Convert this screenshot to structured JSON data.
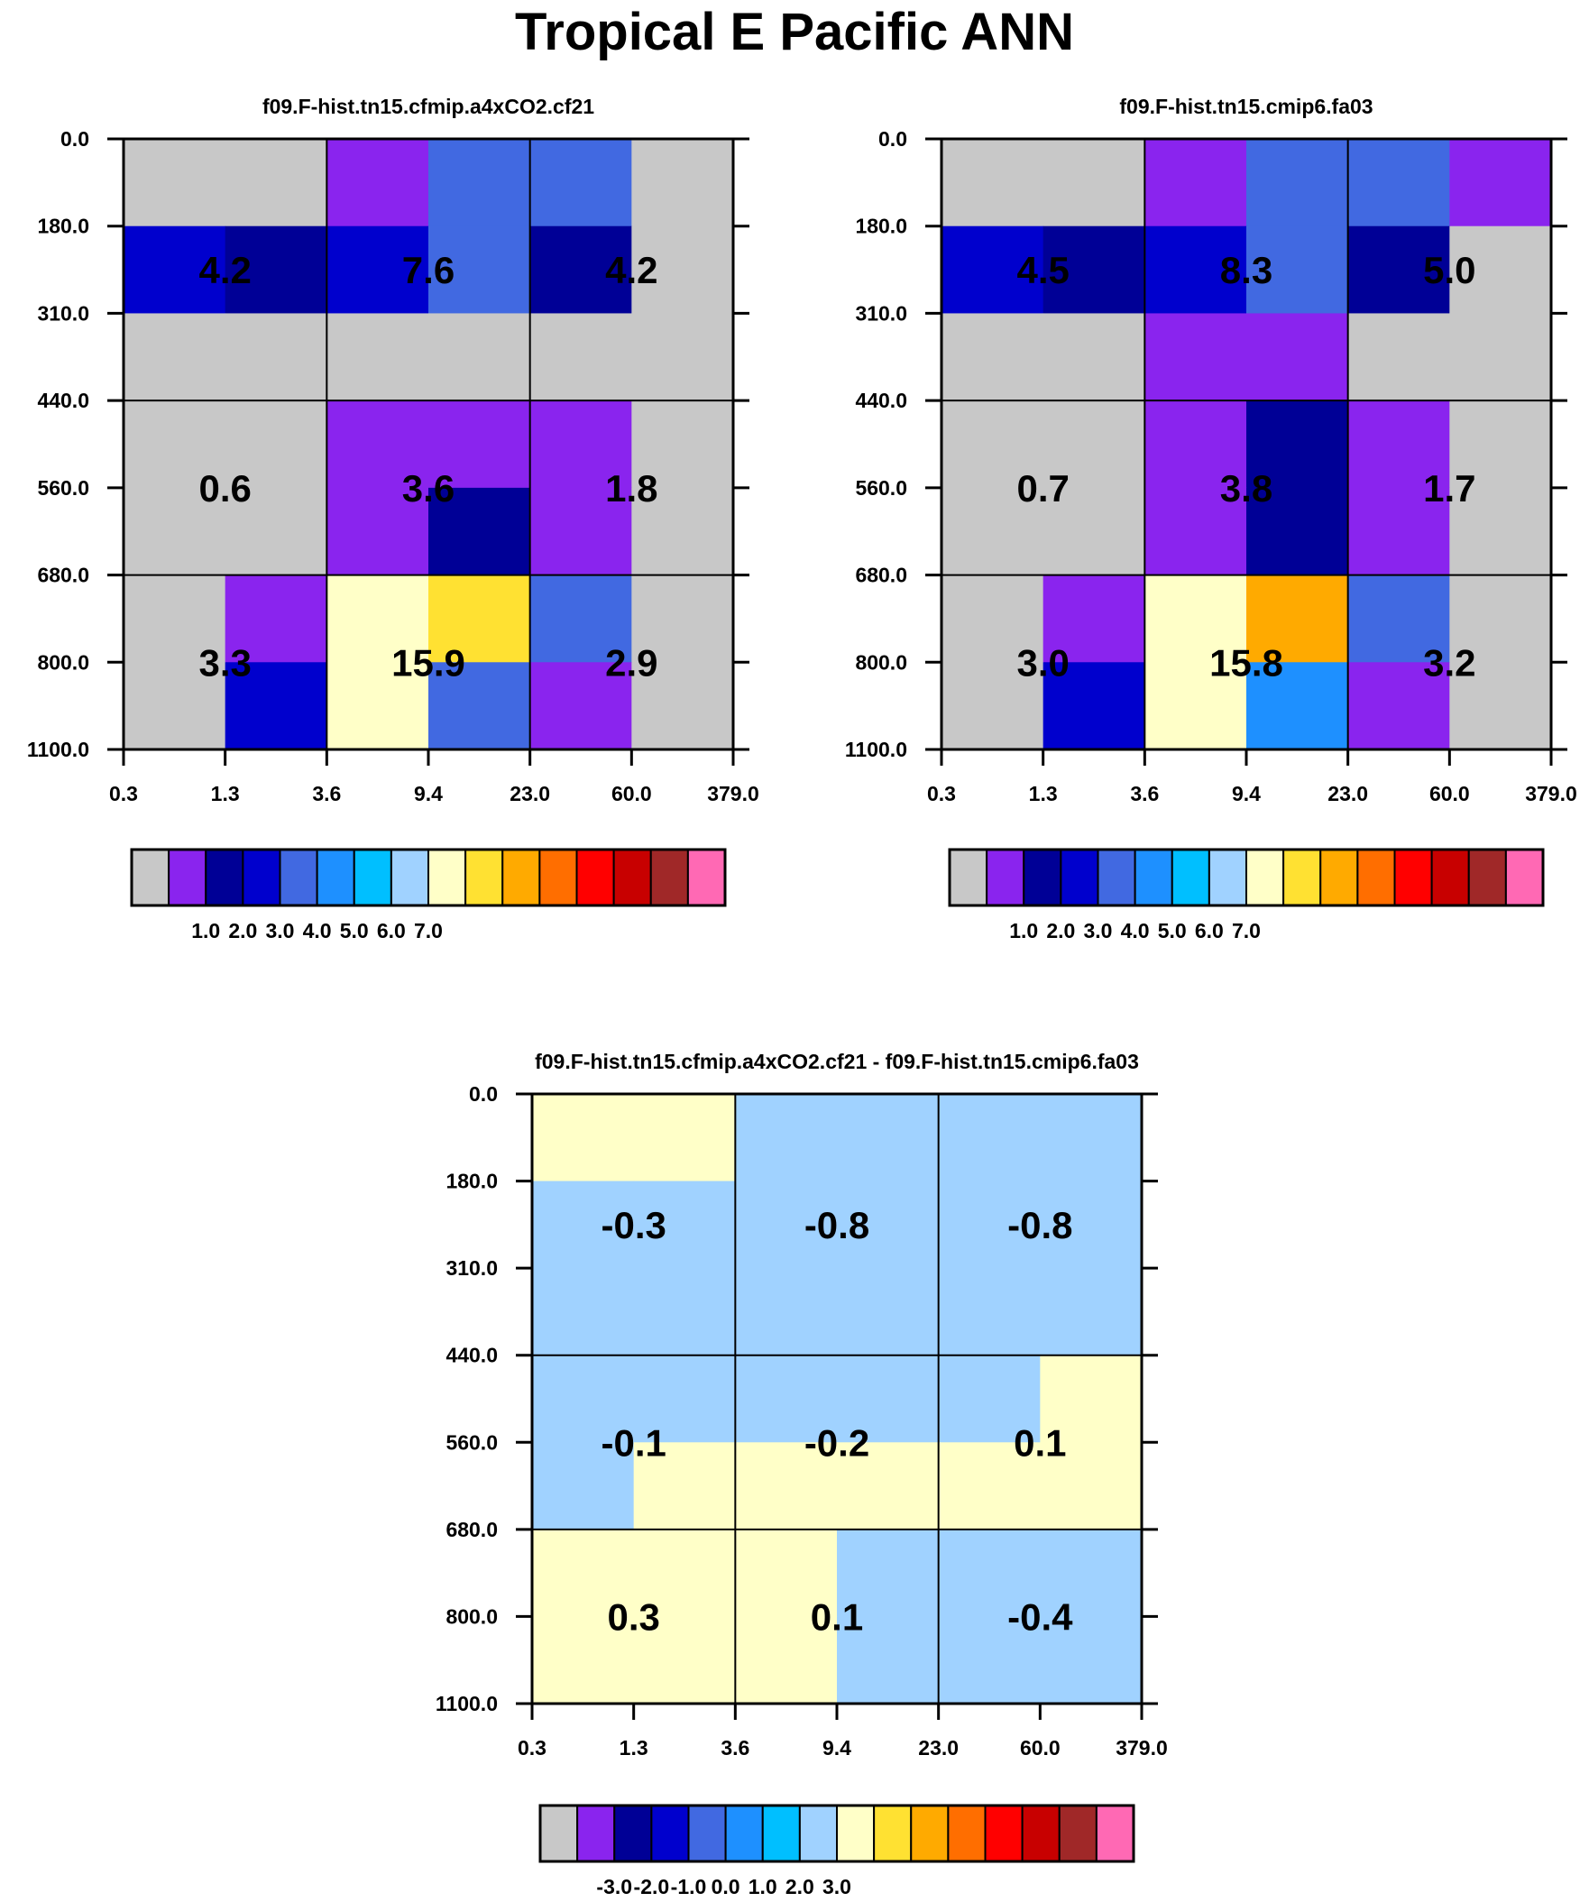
{
  "title": "Tropical E Pacific ANN",
  "palette": [
    "#c8c8c8",
    "#8a24ee",
    "#000096",
    "#0000cd",
    "#4169e1",
    "#1e90ff",
    "#00bfff",
    "#a0d2ff",
    "#ffffc8",
    "#ffe132",
    "#ffaa00",
    "#ff6e00",
    "#ff0000",
    "#c80000",
    "#a02828",
    "#ff69b4"
  ],
  "chart_data": [
    {
      "type": "heatmap",
      "title": "f09.F-hist.tn15.cfmip.a4xCO2.cf21",
      "xticks": [
        "0.3",
        "1.3",
        "3.6",
        "9.4",
        "23.0",
        "60.0",
        "379.0"
      ],
      "yticks": [
        "0.0",
        "180.0",
        "310.0",
        "440.0",
        "560.0",
        "680.0",
        "800.0",
        "1100.0"
      ],
      "grid": [
        [
          0,
          0,
          1,
          4,
          4,
          0
        ],
        [
          3,
          2,
          3,
          4,
          2,
          0
        ],
        [
          0,
          0,
          0,
          0,
          0,
          0
        ],
        [
          0,
          0,
          1,
          1,
          1,
          0
        ],
        [
          0,
          0,
          1,
          2,
          1,
          0
        ],
        [
          0,
          1,
          8,
          9,
          4,
          0
        ],
        [
          0,
          3,
          8,
          4,
          1,
          0
        ]
      ],
      "cell_values": [
        [
          "4.2",
          "7.6",
          "4.2"
        ],
        [
          "0.6",
          "3.6",
          "1.8"
        ],
        [
          "3.3",
          "15.9",
          "2.9"
        ]
      ],
      "colorbar_labels": [
        "1.0",
        "2.0",
        "3.0",
        "4.0",
        "5.0",
        "6.0",
        "7.0"
      ]
    },
    {
      "type": "heatmap",
      "title": "f09.F-hist.tn15.cmip6.fa03",
      "xticks": [
        "0.3",
        "1.3",
        "3.6",
        "9.4",
        "23.0",
        "60.0",
        "379.0"
      ],
      "yticks": [
        "0.0",
        "180.0",
        "310.0",
        "440.0",
        "560.0",
        "680.0",
        "800.0",
        "1100.0"
      ],
      "grid": [
        [
          0,
          0,
          1,
          4,
          4,
          1
        ],
        [
          3,
          2,
          3,
          4,
          2,
          0
        ],
        [
          0,
          0,
          1,
          1,
          0,
          0
        ],
        [
          0,
          0,
          1,
          2,
          1,
          0
        ],
        [
          0,
          0,
          1,
          2,
          1,
          0
        ],
        [
          0,
          1,
          8,
          10,
          4,
          0
        ],
        [
          0,
          3,
          8,
          5,
          1,
          0
        ]
      ],
      "cell_values": [
        [
          "4.5",
          "8.3",
          "5.0"
        ],
        [
          "0.7",
          "3.8",
          "1.7"
        ],
        [
          "3.0",
          "15.8",
          "3.2"
        ]
      ],
      "colorbar_labels": [
        "1.0",
        "2.0",
        "3.0",
        "4.0",
        "5.0",
        "6.0",
        "7.0"
      ]
    },
    {
      "type": "heatmap",
      "title": "f09.F-hist.tn15.cfmip.a4xCO2.cf21 - f09.F-hist.tn15.cmip6.fa03",
      "xticks": [
        "0.3",
        "1.3",
        "3.6",
        "9.4",
        "23.0",
        "60.0",
        "379.0"
      ],
      "yticks": [
        "0.0",
        "180.0",
        "310.0",
        "440.0",
        "560.0",
        "680.0",
        "800.0",
        "1100.0"
      ],
      "grid": [
        [
          8,
          8,
          7,
          7,
          7,
          7
        ],
        [
          7,
          7,
          7,
          7,
          7,
          7
        ],
        [
          7,
          7,
          7,
          7,
          7,
          7
        ],
        [
          7,
          7,
          7,
          7,
          7,
          8
        ],
        [
          7,
          8,
          8,
          8,
          8,
          8
        ],
        [
          8,
          8,
          8,
          7,
          7,
          7
        ],
        [
          8,
          8,
          8,
          7,
          7,
          7
        ]
      ],
      "cell_values": [
        [
          "-0.3",
          "-0.8",
          "-0.8"
        ],
        [
          "-0.1",
          "-0.2",
          "0.1"
        ],
        [
          "0.3",
          "0.1",
          "-0.4"
        ]
      ],
      "colorbar_labels": [
        "-3.0",
        "-2.0",
        "-1.0",
        "0.0",
        "1.0",
        "2.0",
        "3.0"
      ]
    }
  ]
}
